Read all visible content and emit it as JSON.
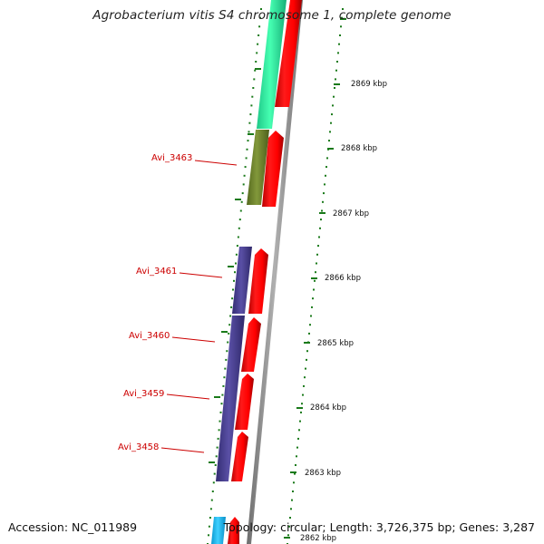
{
  "title": "Agrobacterium vitis S4 chromosome 1, complete genome",
  "accession": "Accession: NC_011989",
  "summary": "Topology: circular; Length: 3,726,375 bp; Genes: 3,287",
  "ticks": [
    "2869 kbp",
    "2868 kbp",
    "2867 kbp",
    "2866 kbp",
    "2865 kbp",
    "2864 kbp",
    "2863 kbp",
    "2862 kbp"
  ],
  "gene_labels": [
    "Avi_3463",
    "Avi_3461",
    "Avi_3460",
    "Avi_3459",
    "Avi_3458"
  ],
  "colors": {
    "forward_strand": "#ff0000",
    "teal_feature": "#2de89a",
    "olive_feature": "#6b7f2a",
    "purple_feature": "#433a86",
    "cyan_feature": "#12b6f0",
    "backbone": "#8a8a8a",
    "tick_dots": "#1a7a1a",
    "label_text": "#cc0000"
  }
}
